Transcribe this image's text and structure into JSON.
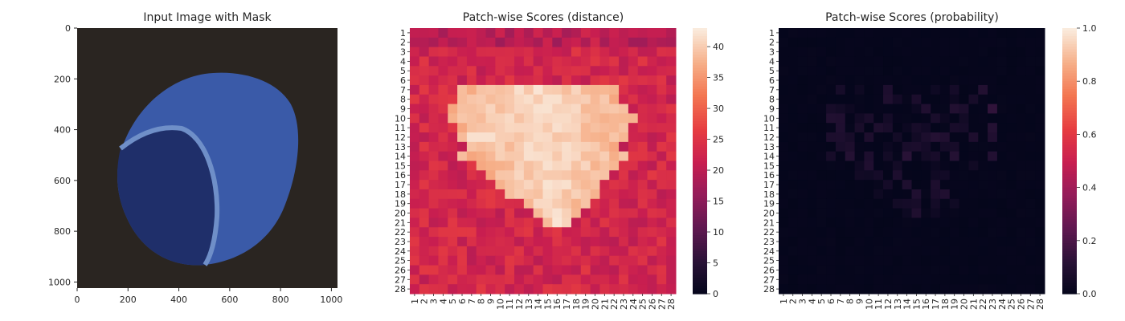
{
  "chart_data": [
    {
      "type": "image",
      "title": "Input Image with Mask",
      "xlim": [
        0,
        1024
      ],
      "ylim": [
        1024,
        0
      ],
      "xticks": [
        "0",
        "200",
        "400",
        "600",
        "800",
        "1000"
      ],
      "yticks": [
        "0",
        "200",
        "400",
        "600",
        "800",
        "1000"
      ],
      "image_description_colors": {
        "background": "#2a2521",
        "nut": "#3a5aa8",
        "nut_dark": "#1f2f6a",
        "cut_surface": "#6f8fc8"
      }
    },
    {
      "type": "heatmap",
      "title": "Patch-wise Scores (distance)",
      "rows": 28,
      "cols": 28,
      "row_labels": [
        "1",
        "2",
        "3",
        "4",
        "5",
        "6",
        "7",
        "8",
        "9",
        "10",
        "11",
        "12",
        "13",
        "14",
        "15",
        "16",
        "17",
        "18",
        "19",
        "20",
        "21",
        "22",
        "23",
        "24",
        "25",
        "26",
        "27",
        "28"
      ],
      "col_labels": [
        "1",
        "2",
        "3",
        "4",
        "5",
        "6",
        "7",
        "8",
        "9",
        "10",
        "11",
        "12",
        "13",
        "14",
        "15",
        "16",
        "17",
        "18",
        "19",
        "20",
        "21",
        "22",
        "23",
        "24",
        "25",
        "26",
        "27",
        "28"
      ],
      "vmin": 0,
      "vmax": 43,
      "colorbar_ticks": [
        "0",
        "5",
        "10",
        "15",
        "20",
        "25",
        "30",
        "35",
        "40"
      ],
      "colormap": "rocket",
      "summary": "Background around 18-26; a bright region (values ~30-42) centred on rows 7-24, columns 5-24, peak ~42 near row 12, column 8"
    },
    {
      "type": "heatmap",
      "title": "Patch-wise Scores (probability)",
      "rows": 28,
      "cols": 28,
      "row_labels": [
        "1",
        "2",
        "3",
        "4",
        "5",
        "6",
        "7",
        "8",
        "9",
        "10",
        "11",
        "12",
        "13",
        "14",
        "15",
        "16",
        "17",
        "18",
        "19",
        "20",
        "21",
        "22",
        "23",
        "24",
        "25",
        "26",
        "27",
        "28"
      ],
      "col_labels": [
        "1",
        "2",
        "3",
        "4",
        "5",
        "6",
        "7",
        "8",
        "9",
        "10",
        "11",
        "12",
        "13",
        "14",
        "15",
        "16",
        "17",
        "18",
        "19",
        "20",
        "21",
        "22",
        "23",
        "24",
        "25",
        "26",
        "27",
        "28"
      ],
      "vmin": 0.0,
      "vmax": 1.0,
      "colorbar_ticks": [
        "0.0",
        "0.2",
        "0.4",
        "0.6",
        "0.8",
        "1.0"
      ],
      "colormap": "rocket",
      "summary": "Nearly all cells ~0.0; faint values up to ~0.1 along rows 7-24, columns 5-24"
    }
  ]
}
